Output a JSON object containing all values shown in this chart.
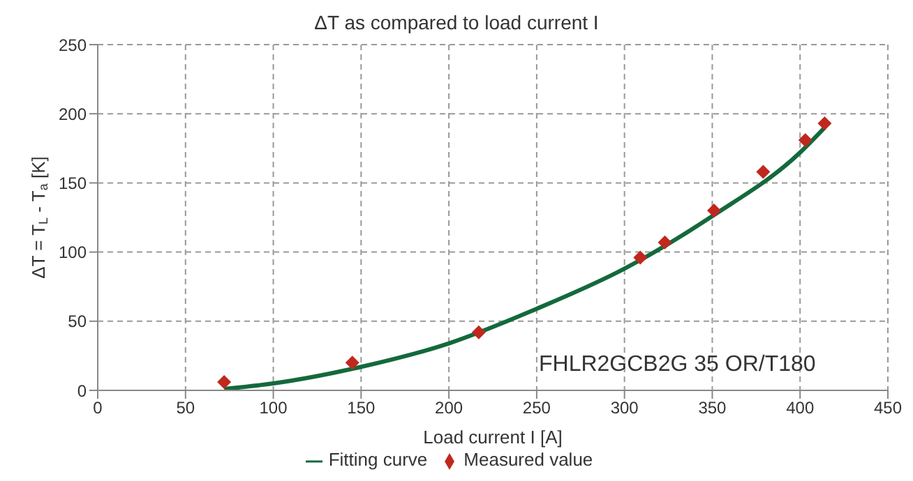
{
  "chart_data": {
    "type": "scatter",
    "title": "ΔT as compared to load current I",
    "xlabel": "Load current I [A]",
    "ylabel": "ΔT = T$_{L}$ - T$_{a}$ [K]",
    "xlim": [
      0,
      450
    ],
    "xticks": [
      0,
      50,
      100,
      150,
      200,
      250,
      300,
      350,
      400,
      450
    ],
    "ylim": [
      0,
      250
    ],
    "yticks": [
      0,
      50,
      100,
      150,
      200,
      250
    ],
    "grid": true,
    "legend": "bottom",
    "series": [
      {
        "name": "Measured value",
        "marker": "diamond",
        "color": "#c0281e",
        "x": [
          72,
          145,
          217,
          309,
          323,
          351,
          379,
          403,
          414
        ],
        "values": [
          6,
          20,
          42,
          96,
          107,
          130,
          158,
          181,
          193
        ]
      },
      {
        "name": "Fitting curve",
        "type": "line",
        "marker": "none",
        "color": "#14693c",
        "x": [
          72,
          100,
          150,
          200,
          250,
          300,
          350,
          400,
          414
        ],
        "values": [
          1,
          5,
          17,
          34,
          59,
          88,
          126,
          172,
          190
        ]
      }
    ],
    "annotations": [
      "FHLR2GCB2G 35 OR/T180"
    ]
  }
}
